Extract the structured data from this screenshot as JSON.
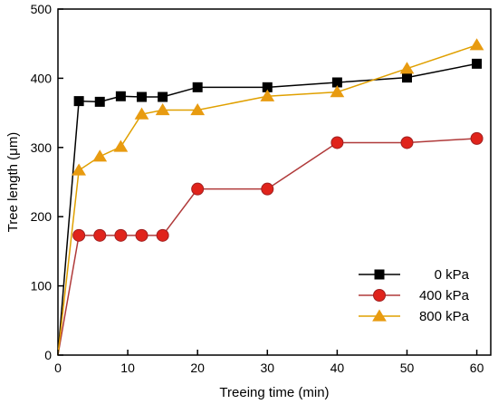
{
  "chart_data": {
    "type": "line",
    "title": "",
    "xlabel": "Treeing time (min)",
    "ylabel": "Tree length (μm)",
    "xlim": [
      0,
      62
    ],
    "ylim": [
      0,
      500
    ],
    "xticks": [
      0,
      10,
      20,
      30,
      40,
      50,
      60
    ],
    "yticks": [
      0,
      100,
      200,
      300,
      400,
      500
    ],
    "grid": false,
    "legend_position": "bottom-right",
    "series": [
      {
        "name": "0 kPa",
        "marker": "square",
        "line_color": "#000000",
        "marker_color": "#000000",
        "x": [
          0,
          3,
          6,
          9,
          12,
          15,
          20,
          30,
          40,
          50,
          60
        ],
        "y": [
          0,
          367,
          366,
          374,
          373,
          373,
          387,
          387,
          394,
          401,
          421
        ]
      },
      {
        "name": "400 kPa",
        "marker": "circle",
        "line_color": "#b03a3a",
        "marker_color": "#e0231b",
        "x": [
          0,
          3,
          6,
          9,
          12,
          15,
          20,
          30,
          40,
          50,
          60
        ],
        "y": [
          0,
          173,
          173,
          173,
          173,
          173,
          240,
          240,
          307,
          307,
          313
        ]
      },
      {
        "name": "800 kPa",
        "marker": "triangle",
        "line_color": "#e0a000",
        "marker_color": "#e89b10",
        "x": [
          0,
          3,
          6,
          9,
          12,
          15,
          20,
          30,
          40,
          50,
          60
        ],
        "y": [
          0,
          267,
          287,
          301,
          348,
          354,
          354,
          374,
          380,
          414,
          448
        ]
      }
    ]
  }
}
